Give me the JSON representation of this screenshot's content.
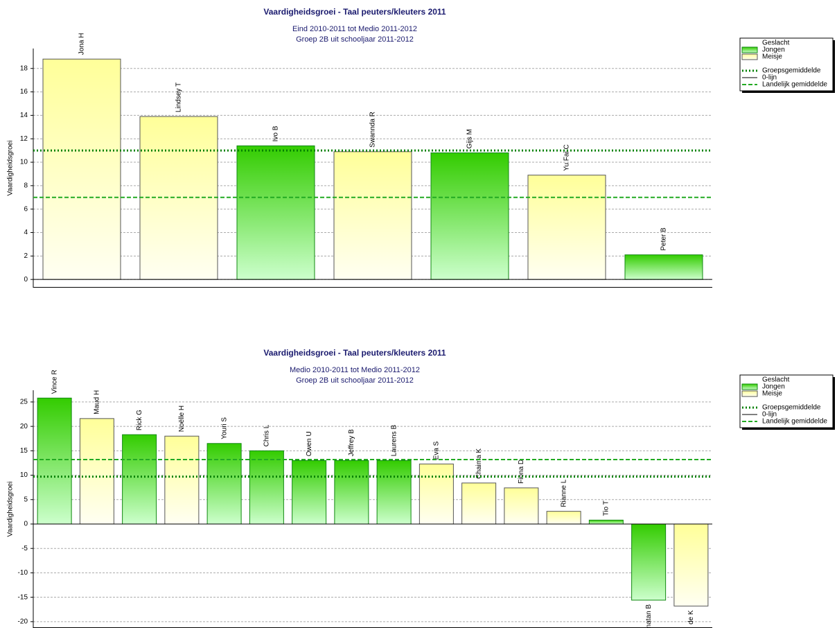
{
  "chart_data": [
    {
      "type": "bar",
      "title": "Vaardigheidsgroei - Taal peuters/kleuters 2011",
      "subtitle": [
        "Eind 2010-2011 tot Medio 2011-2012",
        "Groep 2B uit schooljaar 2011-2012"
      ],
      "y_label": "Vaardigheidsgroei",
      "categories": [
        "Jona H",
        "Lindsey T",
        "Ivo B",
        "Swannda R",
        "Gijs M",
        "Yu Fai C",
        "Peter B"
      ],
      "legend_title": "Geslacht",
      "series": [
        {
          "name": "Jongen",
          "color": "#33cc00",
          "values": [
            null,
            null,
            11.4,
            null,
            10.8,
            null,
            2.1
          ]
        },
        {
          "name": "Meisje",
          "color": "#ffff99",
          "values": [
            18.8,
            13.9,
            null,
            10.9,
            null,
            8.9,
            null
          ]
        }
      ],
      "lines": [
        {
          "name": "Groepsgemiddelde",
          "value": 11.0,
          "style": "dotted",
          "color": "#008000"
        },
        {
          "name": "0-lijn",
          "value": 0,
          "style": "solid",
          "color": "#000000"
        },
        {
          "name": "Landelijk gemiddelde",
          "value": 7.0,
          "style": "dashed",
          "color": "#22aa22"
        }
      ],
      "ylim": [
        -0.7,
        19.7
      ],
      "yticks": [
        0,
        2,
        4,
        6,
        8,
        10,
        12,
        14,
        16,
        18
      ],
      "grid": true
    },
    {
      "type": "bar",
      "title": "Vaardigheidsgroei - Taal peuters/kleuters 2011",
      "subtitle": [
        "Medio 2010-2011 tot Medio 2011-2012",
        "Groep 2B uit schooljaar 2011-2012"
      ],
      "y_label": "Vaardigheidsgroei",
      "categories": [
        "Vince R",
        "Maud H",
        "Rick G",
        "Noëlle H",
        "Youri S",
        "Chris L",
        "Owen U",
        "Jeffrey B",
        "Laurens B",
        "Eva S",
        "Chaima K",
        "Fiona D",
        "Rianne L",
        "Tio T",
        "natan B",
        "de K"
      ],
      "legend_title": "Geslacht",
      "series": [
        {
          "name": "Jongen",
          "color": "#33cc00",
          "values": [
            25.8,
            null,
            18.3,
            null,
            16.5,
            15.0,
            13.0,
            13.0,
            13.0,
            null,
            null,
            null,
            null,
            0.8,
            -15.6,
            null
          ]
        },
        {
          "name": "Meisje",
          "color": "#ffff99",
          "values": [
            null,
            21.6,
            null,
            18.0,
            null,
            null,
            null,
            null,
            null,
            12.3,
            8.4,
            7.4,
            2.6,
            null,
            null,
            -16.8
          ]
        }
      ],
      "lines": [
        {
          "name": "Groepsgemiddelde",
          "value": 9.7,
          "style": "dotted",
          "color": "#008000"
        },
        {
          "name": "0-lijn",
          "value": 0,
          "style": "solid",
          "color": "#000000"
        },
        {
          "name": "Landelijk gemiddelde",
          "value": 13.2,
          "style": "dashed",
          "color": "#22aa22"
        }
      ],
      "ylim": [
        -21.3,
        27.4
      ],
      "yticks": [
        -20,
        -15,
        -10,
        -5,
        0,
        5,
        10,
        15,
        20,
        25
      ],
      "grid": true
    }
  ]
}
